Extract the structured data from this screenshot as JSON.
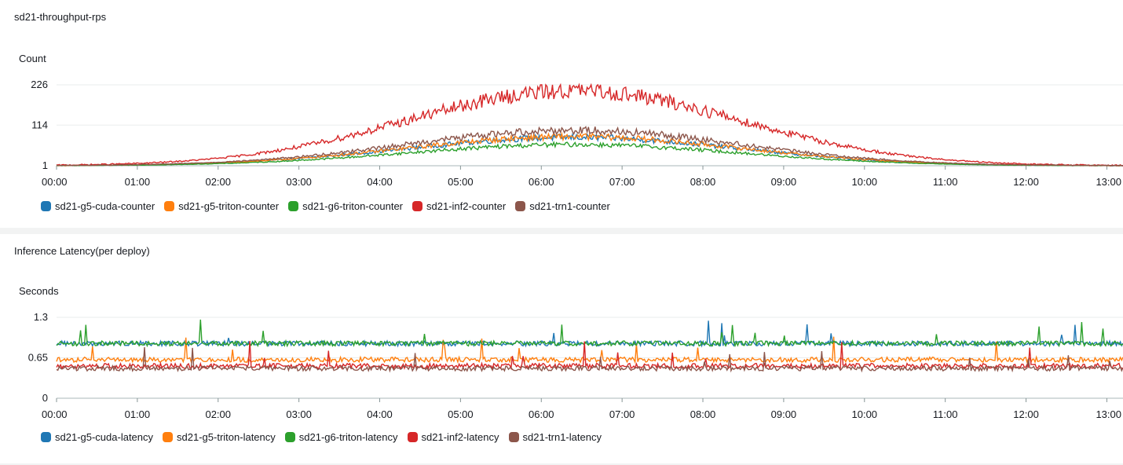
{
  "colors": {
    "g5_cuda": "#1f77b4",
    "g5_triton": "#ff7f0e",
    "g6_triton": "#2ca02c",
    "inf2": "#d62728",
    "trn1": "#8c564b"
  },
  "charts": [
    {
      "title": "sd21-throughput-rps",
      "chart_data": {
        "type": "line",
        "ylabel": "Count",
        "xlabel": "",
        "x_ticks": [
          "00:00",
          "01:00",
          "02:00",
          "03:00",
          "04:00",
          "05:00",
          "06:00",
          "07:00",
          "08:00",
          "09:00",
          "10:00",
          "11:00",
          "12:00",
          "13:00"
        ],
        "y_ticks": [
          "226",
          "114",
          "1"
        ],
        "y_tick_values": [
          226,
          114,
          1
        ],
        "ylim": [
          1,
          226
        ],
        "x_range_hours": [
          0,
          13.2
        ],
        "grid": true,
        "legend_position": "bottom",
        "series": [
          {
            "name": "sd21-g5-cuda-counter",
            "color": "#1f77b4",
            "peak_at_6h": 80,
            "profile": "bell"
          },
          {
            "name": "sd21-g5-triton-counter",
            "color": "#ff7f0e",
            "peak_at_6h": 82,
            "profile": "bell"
          },
          {
            "name": "sd21-g6-triton-counter",
            "color": "#2ca02c",
            "peak_at_6h": 60,
            "profile": "bell"
          },
          {
            "name": "sd21-inf2-counter",
            "color": "#d62728",
            "peak_at_6h": 210,
            "profile": "bell"
          },
          {
            "name": "sd21-trn1-counter",
            "color": "#8c564b",
            "peak_at_6h": 100,
            "profile": "bell"
          }
        ]
      }
    },
    {
      "title": "Inference Latency(per deploy)",
      "chart_data": {
        "type": "line",
        "ylabel": "Seconds",
        "xlabel": "",
        "x_ticks": [
          "00:00",
          "01:00",
          "02:00",
          "03:00",
          "04:00",
          "05:00",
          "06:00",
          "07:00",
          "08:00",
          "09:00",
          "10:00",
          "11:00",
          "12:00",
          "13:00"
        ],
        "y_ticks": [
          "1.3",
          "0.65",
          "0"
        ],
        "y_tick_values": [
          1.3,
          0.65,
          0
        ],
        "ylim": [
          0,
          1.3
        ],
        "x_range_hours": [
          0,
          13.2
        ],
        "grid": true,
        "legend_position": "bottom",
        "series": [
          {
            "name": "sd21-g5-cuda-latency",
            "color": "#1f77b4",
            "level": 0.88,
            "profile": "flat"
          },
          {
            "name": "sd21-g5-triton-latency",
            "color": "#ff7f0e",
            "level": 0.62,
            "profile": "flat"
          },
          {
            "name": "sd21-g6-triton-latency",
            "color": "#2ca02c",
            "level": 0.88,
            "profile": "flat"
          },
          {
            "name": "sd21-inf2-latency",
            "color": "#d62728",
            "level": 0.52,
            "profile": "flat"
          },
          {
            "name": "sd21-trn1-latency",
            "color": "#8c564b",
            "level": 0.48,
            "profile": "flat"
          }
        ]
      }
    }
  ]
}
